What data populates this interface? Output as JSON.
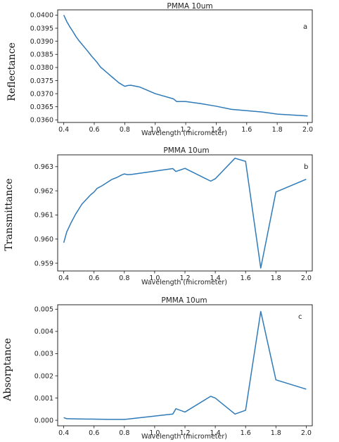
{
  "chart_data": [
    {
      "type": "line",
      "title": "PMMA 10um",
      "panel_label": "a",
      "xlabel": "Wavelength (micrometer)",
      "ylabel": "Reflectance",
      "xlim": [
        0.36,
        2.03
      ],
      "ylim": [
        0.0359,
        0.0402
      ],
      "xticks": [
        0.4,
        0.6,
        0.8,
        1.0,
        1.2,
        1.4,
        1.6,
        1.8,
        2.0
      ],
      "xtick_labels": [
        "0.4",
        "0.6",
        "0.8",
        "1.0",
        "1.2",
        "1.4",
        "1.6",
        "1.8",
        "2.0"
      ],
      "yticks": [
        0.036,
        0.0365,
        0.037,
        0.0375,
        0.038,
        0.0385,
        0.039,
        0.0395,
        0.04
      ],
      "ytick_labels": [
        "0.0360",
        "0.0365",
        "0.0370",
        "0.0375",
        "0.0380",
        "0.0385",
        "0.0390",
        "0.0395",
        "0.0400"
      ],
      "series": [
        {
          "color": "#2f7ab8",
          "x": [
            0.4,
            0.42,
            0.44,
            0.46,
            0.48,
            0.5,
            0.52,
            0.54,
            0.56,
            0.58,
            0.6,
            0.62,
            0.64,
            0.66,
            0.68,
            0.7,
            0.72,
            0.74,
            0.76,
            0.78,
            0.8,
            0.82,
            0.84,
            0.9,
            1.0,
            1.12,
            1.14,
            1.2,
            1.3,
            1.4,
            1.5,
            1.6,
            1.7,
            1.8,
            2.0
          ],
          "y": [
            0.04,
            0.03975,
            0.03955,
            0.03937,
            0.03918,
            0.03902,
            0.03888,
            0.03874,
            0.0386,
            0.03845,
            0.03832,
            0.03818,
            0.03802,
            0.03792,
            0.03782,
            0.03772,
            0.03762,
            0.03752,
            0.03742,
            0.03735,
            0.03728,
            0.03731,
            0.03732,
            0.03725,
            0.037,
            0.0368,
            0.0367,
            0.0367,
            0.03662,
            0.03652,
            0.0364,
            0.03635,
            0.0363,
            0.03622,
            0.03615
          ]
        }
      ]
    },
    {
      "type": "line",
      "title": "PMMA 10um",
      "panel_label": "b",
      "xlabel": "Wavelength (micrometer)",
      "ylabel": "Transmittance",
      "xlim": [
        0.36,
        2.04
      ],
      "ylim": [
        0.95868,
        0.96349
      ],
      "xticks": [
        0.4,
        0.6,
        0.8,
        1.0,
        1.2,
        1.4,
        1.6,
        1.8,
        2.0
      ],
      "xtick_labels": [
        "0.4",
        "0.6",
        "0.8",
        "1.0",
        "1.2",
        "1.4",
        "1.6",
        "1.8",
        "2.0"
      ],
      "yticks": [
        0.959,
        0.96,
        0.961,
        0.962,
        0.963
      ],
      "ytick_labels": [
        "0.959",
        "0.960",
        "0.961",
        "0.962",
        "0.963"
      ],
      "series": [
        {
          "color": "#2f7ab8",
          "x": [
            0.4,
            0.42,
            0.45,
            0.48,
            0.5,
            0.52,
            0.55,
            0.58,
            0.6,
            0.62,
            0.65,
            0.68,
            0.7,
            0.72,
            0.75,
            0.78,
            0.8,
            0.82,
            0.85,
            1.12,
            1.14,
            1.2,
            1.37,
            1.4,
            1.53,
            1.6,
            1.7,
            1.8,
            2.0
          ],
          "y": [
            0.95985,
            0.9603,
            0.9607,
            0.96105,
            0.96125,
            0.96145,
            0.96165,
            0.96185,
            0.96195,
            0.9621,
            0.9622,
            0.96232,
            0.9624,
            0.96248,
            0.96255,
            0.96265,
            0.9627,
            0.96267,
            0.96268,
            0.96292,
            0.9628,
            0.96293,
            0.9624,
            0.9625,
            0.96335,
            0.96322,
            0.9588,
            0.96195,
            0.96248
          ]
        }
      ]
    },
    {
      "type": "line",
      "title": "PMMA 10um",
      "panel_label": "c",
      "xlabel": "Wavelength (micrometer)",
      "ylabel": "Absorptance",
      "xlim": [
        0.36,
        2.04
      ],
      "ylim": [
        -0.00025,
        0.0052
      ],
      "xticks": [
        0.4,
        0.6,
        0.8,
        1.0,
        1.2,
        1.4,
        1.6,
        1.8,
        2.0
      ],
      "xtick_labels": [
        "0.4",
        "0.6",
        "0.8",
        "1.0",
        "1.2",
        "1.4",
        "1.6",
        "1.8",
        "2.0"
      ],
      "yticks": [
        0.0,
        0.001,
        0.002,
        0.003,
        0.004,
        0.005
      ],
      "ytick_labels": [
        "0.000",
        "0.001",
        "0.002",
        "0.003",
        "0.004",
        "0.005"
      ],
      "series": [
        {
          "color": "#2f7ab8",
          "x": [
            0.4,
            0.42,
            0.5,
            0.6,
            0.7,
            0.8,
            0.82,
            1.12,
            1.14,
            1.2,
            1.37,
            1.4,
            1.53,
            1.6,
            1.7,
            1.8,
            2.0
          ],
          "y": [
            0.00012,
            7e-05,
            6e-05,
            5e-05,
            4e-05,
            4e-05,
            5e-05,
            0.00028,
            0.00052,
            0.00037,
            0.00108,
            0.001,
            0.00028,
            0.00045,
            0.0049,
            0.00182,
            0.0014
          ]
        }
      ]
    }
  ]
}
